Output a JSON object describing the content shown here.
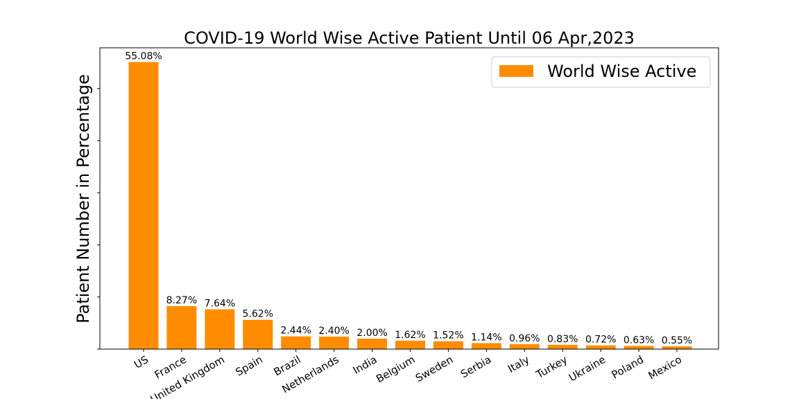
{
  "chart_data": {
    "type": "bar",
    "title": "COVID-19 World Wise Active Patient Until 06 Apr,2023",
    "xlabel": "",
    "ylabel": "Patient Number in Percentage",
    "categories": [
      "US",
      "France",
      "United Kingdom",
      "Spain",
      "Brazil",
      "Netherlands",
      "India",
      "Belgium",
      "Sweden",
      "Serbia",
      "Italy",
      "Turkey",
      "Ukraine",
      "Poland",
      "Mexico"
    ],
    "series": [
      {
        "name": "World Wise Active",
        "values": [
          55.08,
          8.27,
          7.64,
          5.62,
          2.44,
          2.4,
          2.0,
          1.62,
          1.52,
          1.14,
          0.96,
          0.83,
          0.72,
          0.63,
          0.55
        ],
        "data_labels": [
          "55.08%",
          "8.27%",
          "7.64%",
          "5.62%",
          "2.44%",
          "2.40%",
          "2.00%",
          "1.62%",
          "1.52%",
          "1.14%",
          "0.96%",
          "0.83%",
          "0.72%",
          "0.63%",
          "0.55%"
        ],
        "color": "#ff8c00"
      }
    ],
    "ylim": [
      0,
      57.8
    ],
    "y_ticks": [
      0,
      10,
      20,
      30,
      40,
      50
    ],
    "y_tick_labels_shown": false,
    "grid": false,
    "legend_position": "top-right",
    "x_tick_rotation": -30
  }
}
